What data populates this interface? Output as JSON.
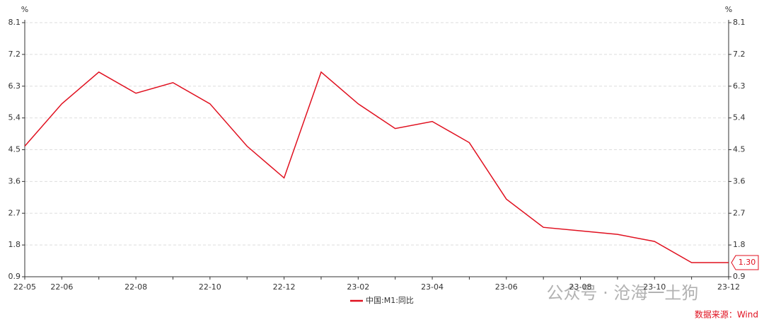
{
  "chart_data": {
    "type": "line",
    "y_unit": "%",
    "y2_unit": "%",
    "categories": [
      "22-05",
      "22-06",
      null,
      "22-08",
      null,
      "22-10",
      null,
      "22-12",
      null,
      "23-02",
      null,
      "23-04",
      null,
      "23-06",
      null,
      "23-08",
      null,
      "23-10",
      null,
      "23-12"
    ],
    "series": [
      {
        "name": "中国:M1:同比",
        "color": "#e0101f",
        "values": [
          4.6,
          5.8,
          6.7,
          6.1,
          6.4,
          5.8,
          4.6,
          3.7,
          6.7,
          5.8,
          5.1,
          5.3,
          4.7,
          3.1,
          2.3,
          2.2,
          2.1,
          1.9,
          1.3,
          1.3
        ],
        "value_labels": [
          null,
          null,
          null,
          null,
          null,
          null,
          null,
          null,
          null,
          null,
          null,
          null,
          null,
          null,
          null,
          null,
          null,
          null,
          null,
          "1.30"
        ]
      }
    ],
    "ylim": [
      0.9,
      8.1
    ],
    "yticks": [
      0.9,
      1.8,
      2.7,
      3.6,
      4.5,
      5.4,
      6.3,
      7.2,
      8.1
    ],
    "y2lim": [
      0.9,
      8.1
    ],
    "y2ticks": [
      0.9,
      1.8,
      2.7,
      3.6,
      4.5,
      5.4,
      6.3,
      7.2,
      8.1
    ],
    "grid": true,
    "legend": "bottom",
    "watermark": "公众号 · 沧海一土狗",
    "source": "数据来源：Wind"
  }
}
